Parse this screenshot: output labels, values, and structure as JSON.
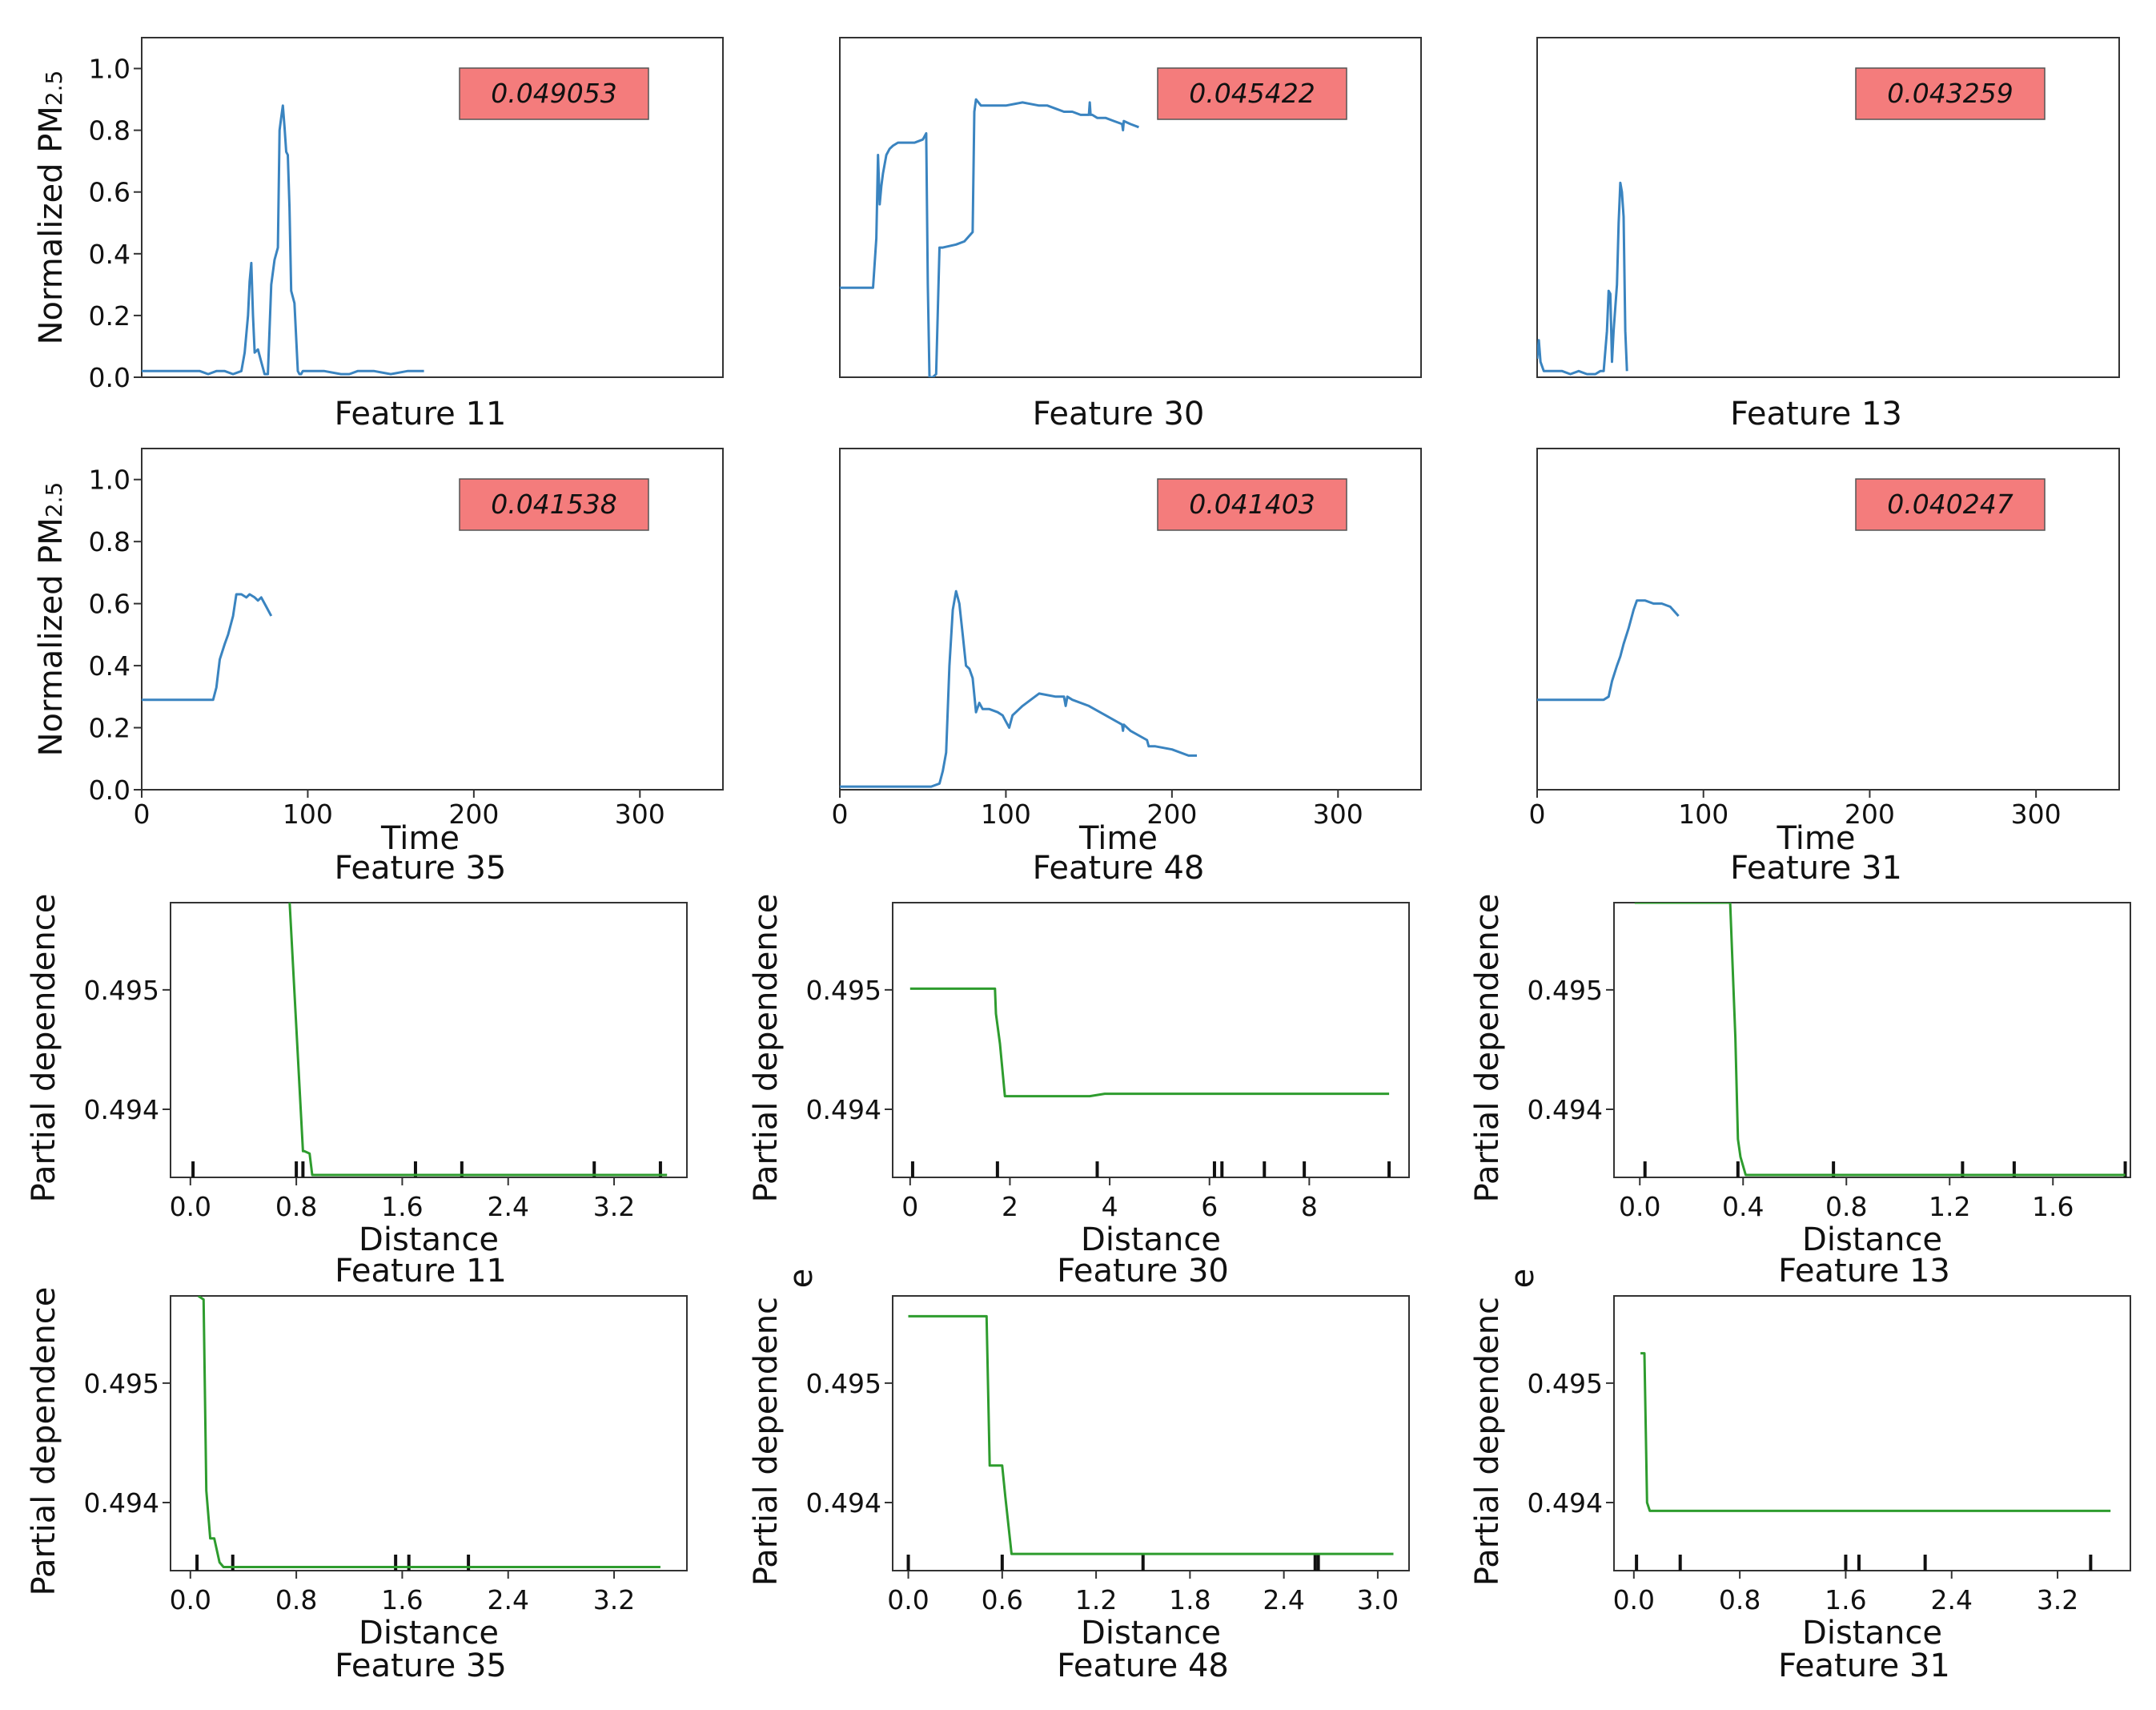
{
  "colors": {
    "ts_line": "#3a84c0",
    "pd_line": "#2e9c2e",
    "score_box": "#f47c7c",
    "axis": "#333333"
  },
  "chart_data": [
    {
      "type": "line",
      "panel": "ts-11",
      "feature_label": "Feature 11",
      "score": "0.049053",
      "ylabel": "Normalized PM",
      "ylabel_sub": "2.5",
      "xlabel": "",
      "xlim": [
        0,
        350
      ],
      "ylim": [
        0,
        1.1
      ],
      "yticks": [
        "0.0",
        "0.2",
        "0.4",
        "0.6",
        "0.8",
        "1.0"
      ],
      "xticks": [],
      "x": [
        0,
        10,
        20,
        30,
        35,
        40,
        45,
        50,
        55,
        60,
        62,
        64,
        65,
        66,
        67,
        68,
        70,
        72,
        74,
        76,
        78,
        80,
        82,
        83,
        84,
        85,
        86,
        87,
        88,
        89,
        90,
        92,
        94,
        95,
        96,
        97,
        100,
        110,
        120,
        125,
        130,
        140,
        150,
        160,
        170
      ],
      "y": [
        0.02,
        0.02,
        0.02,
        0.02,
        0.02,
        0.01,
        0.02,
        0.02,
        0.01,
        0.02,
        0.08,
        0.2,
        0.31,
        0.37,
        0.2,
        0.08,
        0.09,
        0.05,
        0.01,
        0.01,
        0.3,
        0.38,
        0.42,
        0.8,
        0.84,
        0.88,
        0.81,
        0.73,
        0.72,
        0.55,
        0.28,
        0.24,
        0.02,
        0.01,
        0.01,
        0.02,
        0.02,
        0.02,
        0.01,
        0.01,
        0.02,
        0.02,
        0.01,
        0.02,
        0.02
      ]
    },
    {
      "type": "line",
      "panel": "ts-30",
      "feature_label": "Feature 30",
      "score": "0.045422",
      "ylabel": "",
      "xlabel": "",
      "xlim": [
        0,
        350
      ],
      "ylim": [
        0,
        1.1
      ],
      "yticks": [],
      "xticks": [],
      "x": [
        0,
        5,
        10,
        15,
        20,
        22,
        23,
        24,
        25,
        26,
        28,
        30,
        32,
        35,
        40,
        45,
        50,
        52,
        53,
        54,
        55,
        56,
        58,
        60,
        62,
        70,
        75,
        80,
        81,
        82,
        85,
        90,
        95,
        100,
        110,
        120,
        125,
        130,
        135,
        140,
        145,
        150,
        150.5,
        151,
        152,
        155,
        160,
        165,
        170,
        170.5,
        171,
        175,
        180
      ],
      "y": [
        0.29,
        0.29,
        0.29,
        0.29,
        0.29,
        0.45,
        0.72,
        0.56,
        0.62,
        0.66,
        0.72,
        0.74,
        0.75,
        0.76,
        0.76,
        0.76,
        0.77,
        0.79,
        0.3,
        0,
        0,
        0,
        0.01,
        0.42,
        0.42,
        0.43,
        0.44,
        0.47,
        0.86,
        0.9,
        0.88,
        0.88,
        0.88,
        0.88,
        0.89,
        0.88,
        0.88,
        0.87,
        0.86,
        0.86,
        0.85,
        0.85,
        0.89,
        0.85,
        0.85,
        0.84,
        0.84,
        0.83,
        0.82,
        0.8,
        0.83,
        0.82,
        0.81
      ]
    },
    {
      "type": "line",
      "panel": "ts-13",
      "feature_label": "Feature 13",
      "score": "0.043259",
      "ylabel": "",
      "xlabel": "",
      "xlim": [
        0,
        350
      ],
      "ylim": [
        0,
        1.1
      ],
      "yticks": [],
      "xticks": [],
      "x": [
        0,
        1,
        2,
        4,
        6,
        10,
        15,
        20,
        25,
        30,
        35,
        38,
        40,
        42,
        43,
        44,
        45,
        46,
        48,
        49,
        50,
        51,
        52,
        53,
        54
      ],
      "y": [
        0.06,
        0.12,
        0.05,
        0.02,
        0.02,
        0.02,
        0.02,
        0.01,
        0.02,
        0.01,
        0.01,
        0.02,
        0.02,
        0.15,
        0.28,
        0.27,
        0.05,
        0.15,
        0.3,
        0.5,
        0.63,
        0.6,
        0.52,
        0.15,
        0.02
      ]
    },
    {
      "type": "line",
      "panel": "ts-35",
      "feature_label": "Feature 35",
      "score": "0.041538",
      "ylabel": "Normalized PM",
      "ylabel_sub": "2.5",
      "xlabel": "Time",
      "xlim": [
        0,
        350
      ],
      "ylim": [
        0,
        1.1
      ],
      "yticks": [
        "0.0",
        "0.2",
        "0.4",
        "0.6",
        "0.8",
        "1.0"
      ],
      "xticks": [
        "0",
        "100",
        "200",
        "300"
      ],
      "x": [
        0,
        10,
        20,
        30,
        40,
        43,
        45,
        47,
        50,
        52,
        55,
        57,
        60,
        63,
        65,
        68,
        70,
        72,
        75,
        78
      ],
      "y": [
        0.29,
        0.29,
        0.29,
        0.29,
        0.29,
        0.29,
        0.33,
        0.42,
        0.47,
        0.5,
        0.56,
        0.63,
        0.63,
        0.62,
        0.63,
        0.62,
        0.61,
        0.62,
        0.59,
        0.56
      ]
    },
    {
      "type": "line",
      "panel": "ts-48",
      "feature_label": "Feature 48",
      "score": "0.041403",
      "ylabel": "",
      "xlabel": "Time",
      "xlim": [
        0,
        350
      ],
      "ylim": [
        0,
        1.1
      ],
      "yticks": [],
      "xticks": [
        "0",
        "100",
        "200",
        "300"
      ],
      "x": [
        0,
        10,
        20,
        30,
        40,
        50,
        55,
        60,
        62,
        64,
        66,
        68,
        70,
        72,
        74,
        76,
        78,
        80,
        82,
        84,
        86,
        90,
        95,
        98,
        100,
        102,
        104,
        106,
        108,
        110,
        115,
        120,
        130,
        135,
        136,
        137,
        140,
        150,
        160,
        170,
        170.5,
        171,
        175,
        185,
        186,
        190,
        200,
        210,
        215
      ],
      "y": [
        0.01,
        0.01,
        0.01,
        0.01,
        0.01,
        0.01,
        0.01,
        0.02,
        0.06,
        0.12,
        0.4,
        0.58,
        0.64,
        0.6,
        0.5,
        0.4,
        0.39,
        0.36,
        0.25,
        0.28,
        0.26,
        0.26,
        0.25,
        0.24,
        0.22,
        0.2,
        0.24,
        0.25,
        0.26,
        0.27,
        0.29,
        0.31,
        0.3,
        0.3,
        0.27,
        0.3,
        0.29,
        0.27,
        0.24,
        0.21,
        0.19,
        0.21,
        0.19,
        0.16,
        0.14,
        0.14,
        0.13,
        0.11,
        0.11
      ]
    },
    {
      "type": "line",
      "panel": "ts-31",
      "feature_label": "Feature 31",
      "score": "0.040247",
      "ylabel": "",
      "xlabel": "Time",
      "xlim": [
        0,
        350
      ],
      "ylim": [
        0,
        1.1
      ],
      "yticks": [],
      "xticks": [
        "0",
        "100",
        "200",
        "300"
      ],
      "x": [
        0,
        10,
        20,
        30,
        40,
        43,
        45,
        48,
        50,
        52,
        55,
        58,
        60,
        63,
        65,
        70,
        75,
        80,
        85
      ],
      "y": [
        0.29,
        0.29,
        0.29,
        0.29,
        0.29,
        0.3,
        0.35,
        0.4,
        0.43,
        0.47,
        0.52,
        0.58,
        0.61,
        0.61,
        0.61,
        0.6,
        0.6,
        0.59,
        0.56
      ]
    },
    {
      "type": "line",
      "panel": "pd-11",
      "feature_label": "Feature 11",
      "ylabel": "Partial dependence",
      "xlabel": "Distance",
      "xlim": [
        -0.15,
        3.75
      ],
      "ylim": [
        0.49343,
        0.49573
      ],
      "yticks": [
        "0.494",
        "0.495"
      ],
      "ytick_values": [
        0.494,
        0.495
      ],
      "xticks": [
        "0.0",
        "0.8",
        "1.6",
        "2.4",
        "3.2"
      ],
      "xtick_values": [
        0,
        0.8,
        1.6,
        2.4,
        3.2
      ],
      "rug": [
        0.02,
        0.8,
        0.85,
        1.7,
        2.05,
        3.05,
        3.55
      ],
      "x": [
        0.75,
        0.85,
        0.86,
        0.9,
        0.92,
        3.6
      ],
      "y": [
        0.49573,
        0.49365,
        0.49365,
        0.49363,
        0.49345,
        0.49345
      ]
    },
    {
      "type": "line",
      "panel": "pd-30",
      "feature_label": "Feature 30",
      "ylabel": "Partial dependence",
      "xlabel": "Distance",
      "xlim": [
        -0.35,
        10.0
      ],
      "ylim": [
        0.49343,
        0.49573
      ],
      "yticks": [
        "0.494",
        "0.495"
      ],
      "ytick_values": [
        0.494,
        0.495
      ],
      "xticks": [
        "0",
        "2",
        "4",
        "6",
        "8"
      ],
      "xtick_values": [
        0,
        2,
        4,
        6,
        8
      ],
      "rug": [
        0.05,
        1.75,
        3.75,
        6.1,
        6.25,
        7.1,
        7.9,
        9.6
      ],
      "x": [
        0,
        1.7,
        1.72,
        1.8,
        1.9,
        3.6,
        3.9,
        9.6
      ],
      "y": [
        0.49501,
        0.49501,
        0.4948,
        0.49455,
        0.49411,
        0.49411,
        0.49413,
        0.49413
      ]
    },
    {
      "type": "line",
      "panel": "pd-13",
      "feature_label": "Feature 13",
      "ylabel": "Partial dependence",
      "xlabel": "Distance",
      "xlim": [
        -0.1,
        1.9
      ],
      "ylim": [
        0.49343,
        0.49573
      ],
      "yticks": [
        "0.494",
        "0.495"
      ],
      "ytick_values": [
        0.494,
        0.495
      ],
      "xticks": [
        "0.0",
        "0.4",
        "0.8",
        "1.2",
        "1.6"
      ],
      "xtick_values": [
        0,
        0.4,
        0.8,
        1.2,
        1.6
      ],
      "rug": [
        0.02,
        0.38,
        0.75,
        1.25,
        1.45,
        1.88
      ],
      "x": [
        -0.02,
        0.35,
        0.37,
        0.38,
        0.39,
        0.41,
        1.88
      ],
      "y": [
        0.49573,
        0.49573,
        0.4946,
        0.49375,
        0.4936,
        0.49345,
        0.49345
      ]
    },
    {
      "type": "line",
      "panel": "pd-35",
      "feature_label": "Feature 35",
      "ylabel": "Partial dependence",
      "xlabel": "Distance",
      "xlim": [
        -0.15,
        3.75
      ],
      "ylim": [
        0.49343,
        0.49573
      ],
      "yticks": [
        "0.494",
        "0.495"
      ],
      "ytick_values": [
        0.494,
        0.495
      ],
      "xticks": [
        "0.0",
        "0.8",
        "1.6",
        "2.4",
        "3.2"
      ],
      "xtick_values": [
        0,
        0.8,
        1.6,
        2.4,
        3.2
      ],
      "rug": [
        0.05,
        0.32,
        1.55,
        1.65,
        2.1
      ],
      "x": [
        0.06,
        0.1,
        0.12,
        0.15,
        0.18,
        0.22,
        0.25,
        3.55
      ],
      "y": [
        0.49573,
        0.4957,
        0.4941,
        0.4937,
        0.4937,
        0.4935,
        0.49346,
        0.49346
      ]
    },
    {
      "type": "line",
      "panel": "pd-48",
      "feature_label": "Feature 48",
      "ylabel": "Partial dependenc",
      "ylabel_extra": "e",
      "xlabel": "Distance",
      "xlim": [
        -0.1,
        3.2
      ],
      "ylim": [
        0.49343,
        0.49573
      ],
      "yticks": [
        "0.494",
        "0.495"
      ],
      "ytick_values": [
        0.494,
        0.495
      ],
      "xticks": [
        "0.0",
        "0.6",
        "1.2",
        "1.8",
        "2.4",
        "3.0"
      ],
      "xtick_values": [
        0,
        0.6,
        1.2,
        1.8,
        2.4,
        3.0
      ],
      "rug": [
        0,
        0.6,
        1.5,
        2.6,
        2.62
      ],
      "x": [
        0,
        0.5,
        0.52,
        0.6,
        0.62,
        0.66,
        3.1
      ],
      "y": [
        0.49556,
        0.49556,
        0.49431,
        0.49431,
        0.49405,
        0.49357,
        0.49357
      ]
    },
    {
      "type": "line",
      "panel": "pd-31",
      "feature_label": "Feature 31",
      "ylabel": "Partial dependenc",
      "ylabel_extra": "e",
      "xlabel": "Distance",
      "xlim": [
        -0.15,
        3.75
      ],
      "ylim": [
        0.49343,
        0.49573
      ],
      "yticks": [
        "0.494",
        "0.495"
      ],
      "ytick_values": [
        0.494,
        0.495
      ],
      "xticks": [
        "0.0",
        "0.8",
        "1.6",
        "2.4",
        "3.2"
      ],
      "xtick_values": [
        0,
        0.8,
        1.6,
        2.4,
        3.2
      ],
      "rug": [
        0.02,
        0.35,
        1.6,
        1.7,
        2.2,
        3.45
      ],
      "x": [
        0.05,
        0.08,
        0.1,
        0.12,
        3.6
      ],
      "y": [
        0.49525,
        0.49525,
        0.494,
        0.49393,
        0.49393
      ]
    }
  ]
}
